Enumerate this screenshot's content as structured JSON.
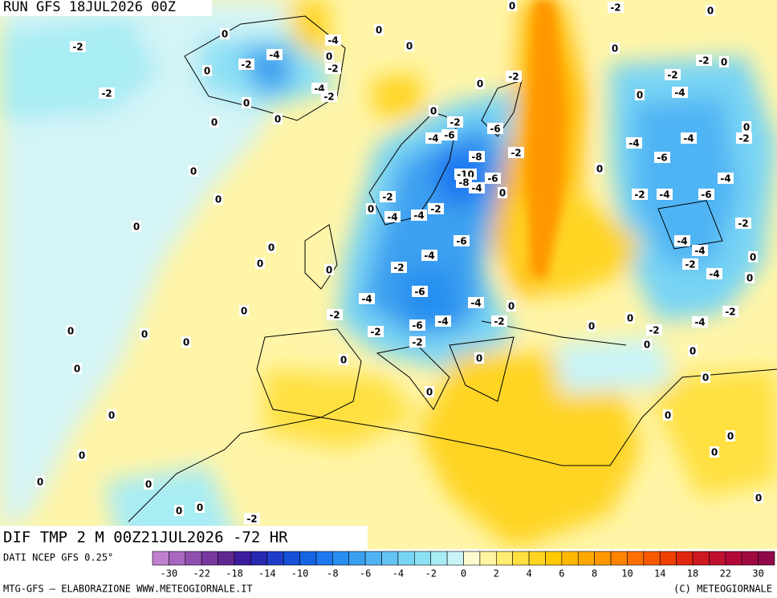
{
  "header": {
    "run": "RUN GFS 18JUL2026 00Z"
  },
  "map": {
    "title": "DIF TMP 2 M 00Z21JUL2026 -72 HR",
    "labels": [
      -2,
      0,
      -2,
      -2,
      -4,
      0,
      -4,
      0,
      -2,
      -4,
      -2,
      0,
      0,
      0,
      0,
      0,
      0,
      -2,
      0,
      0,
      -2,
      0,
      -2,
      -2,
      0,
      -4,
      0,
      0,
      -2,
      -6,
      -4,
      -6,
      0,
      -2,
      -4,
      -4,
      -2,
      -8,
      -6,
      0,
      0,
      -10,
      -8,
      -6,
      -4,
      -4,
      0,
      -2,
      -2,
      -4,
      -6,
      0,
      0,
      -4,
      -4,
      -2,
      -2,
      0,
      -6,
      -4,
      -4,
      0,
      -4,
      0,
      0,
      -2,
      -2,
      0,
      -4,
      0,
      -4,
      -6,
      -4,
      0,
      0,
      -2,
      -2,
      -6,
      -4,
      -2,
      -4,
      0,
      0,
      0,
      -2,
      -2,
      0,
      0,
      -2,
      0,
      0,
      0,
      0,
      0,
      0,
      0,
      0,
      0,
      0,
      0,
      0,
      0,
      0,
      0,
      0,
      0,
      -2,
      0,
      0
    ]
  },
  "colorbar": {
    "source": "DATI NCEP GFS 0.25°",
    "colors": [
      "#c080d0",
      "#a868c0",
      "#9050b0",
      "#7838a0",
      "#602890",
      "#3c1c9c",
      "#2828b0",
      "#1e3cc8",
      "#1450d8",
      "#1464e4",
      "#1e78f0",
      "#2890f0",
      "#3ca0f0",
      "#50b4f4",
      "#64c4f4",
      "#78d4f4",
      "#8ce0f4",
      "#a8ecf4",
      "#c8f4f8",
      "#fffbd0",
      "#fff5a0",
      "#ffec70",
      "#ffe040",
      "#ffd420",
      "#ffc800",
      "#ffb800",
      "#ffa800",
      "#ff9800",
      "#ff8400",
      "#ff7000",
      "#f85a00",
      "#f04000",
      "#e02810",
      "#d01820",
      "#c01030",
      "#b00838",
      "#a00840",
      "#900848"
    ],
    "labels": [
      -30,
      -22,
      -18,
      -14,
      -10,
      -8,
      -6,
      -4,
      -2,
      0,
      2,
      4,
      6,
      8,
      10,
      14,
      18,
      22,
      30
    ]
  },
  "footer": {
    "left": "MTG-GFS – ELABORAZIONE WWW.METEOGIORNALE.IT",
    "right": "(C) METEOGIORNALE"
  }
}
